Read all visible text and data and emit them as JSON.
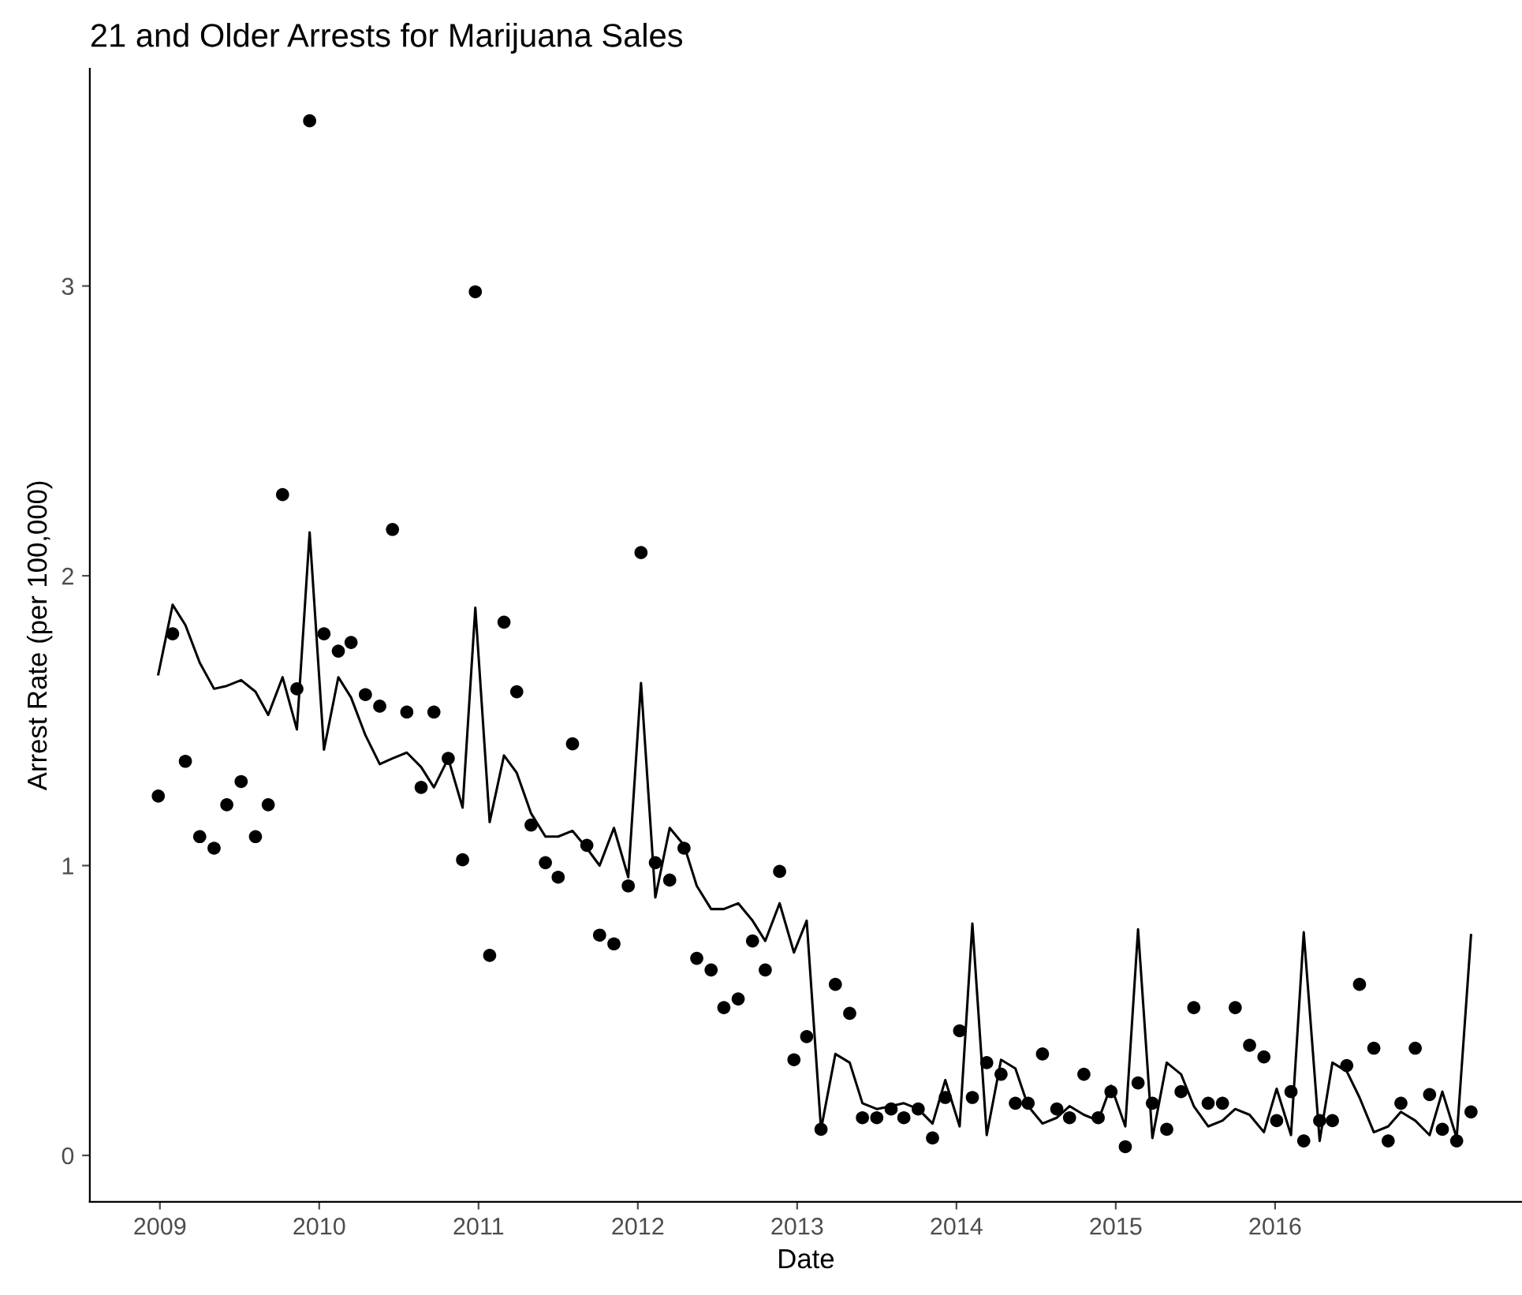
{
  "chart_data": {
    "type": "scatter",
    "title": "21 and Older Arrests for Marijuana Sales",
    "xlabel": "Date",
    "ylabel": "Arrest Rate (per 100,000)",
    "x": [
      2008.99,
      2009.08,
      2009.16,
      2009.25,
      2009.34,
      2009.42,
      2009.51,
      2009.6,
      2009.68,
      2009.77,
      2009.86,
      2009.94,
      2010.03,
      2010.12,
      2010.2,
      2010.29,
      2010.38,
      2010.46,
      2010.55,
      2010.64,
      2010.72,
      2010.81,
      2010.9,
      2010.98,
      2011.07,
      2011.16,
      2011.24,
      2011.33,
      2011.42,
      2011.5,
      2011.59,
      2011.68,
      2011.76,
      2011.85,
      2011.94,
      2012.02,
      2012.11,
      2012.2,
      2012.29,
      2012.37,
      2012.46,
      2012.54,
      2012.63,
      2012.72,
      2012.8,
      2012.89,
      2012.98,
      2013.06,
      2013.15,
      2013.24,
      2013.33,
      2013.41,
      2013.5,
      2013.59,
      2013.67,
      2013.76,
      2013.85,
      2013.93,
      2014.02,
      2014.1,
      2014.19,
      2014.28,
      2014.37,
      2014.45,
      2014.54,
      2014.63,
      2014.71,
      2014.8,
      2014.89,
      2014.97,
      2015.06,
      2015.14,
      2015.23,
      2015.32,
      2015.41,
      2015.49,
      2015.58,
      2015.67,
      2015.75,
      2015.84,
      2015.93,
      2016.01,
      2016.1,
      2016.18,
      2016.28,
      2016.36,
      2016.45,
      2016.53,
      2016.62,
      2016.71,
      2016.79,
      2016.88,
      2016.97,
      2017.05,
      2017.14,
      2017.23
    ],
    "series": [
      {
        "color": "#000000",
        "marker": "circle",
        "values": [
          1.24,
          1.8,
          1.36,
          1.1,
          1.06,
          1.21,
          1.29,
          1.1,
          1.21,
          2.28,
          1.61,
          3.57,
          1.8,
          1.74,
          1.77,
          1.59,
          1.55,
          2.16,
          1.53,
          1.27,
          1.53,
          1.37,
          1.02,
          2.98,
          0.69,
          1.84,
          1.6,
          1.14,
          1.01,
          0.96,
          1.42,
          1.07,
          0.76,
          0.73,
          0.93,
          2.08,
          1.01,
          0.95,
          1.06,
          0.68,
          0.64,
          0.51,
          0.54,
          0.74,
          0.64,
          0.98,
          0.33,
          0.41,
          0.09,
          0.59,
          0.49,
          0.13,
          0.13,
          0.16,
          0.13,
          0.16,
          0.06,
          0.2,
          0.43,
          0.2,
          0.32,
          0.28,
          0.18,
          0.18,
          0.35,
          0.16,
          0.13,
          0.28,
          0.13,
          0.22,
          0.03,
          0.25,
          0.18,
          0.09,
          0.22,
          0.51,
          0.18,
          0.18,
          0.51,
          0.38,
          0.34,
          0.12,
          0.22,
          0.05,
          0.12,
          0.12,
          0.31,
          0.59,
          0.37,
          0.05,
          0.18,
          0.37,
          0.21,
          0.09,
          0.05,
          0.15
        ]
      },
      {
        "type": "line",
        "color": "#000000",
        "marker": "none",
        "line_style": "solid",
        "values": [
          1.66,
          1.9,
          1.83,
          1.7,
          1.61,
          1.62,
          1.64,
          1.6,
          1.52,
          1.65,
          1.47,
          2.15,
          1.4,
          1.65,
          1.58,
          1.45,
          1.35,
          1.37,
          1.39,
          1.34,
          1.27,
          1.37,
          1.2,
          1.89,
          1.15,
          1.38,
          1.32,
          1.18,
          1.1,
          1.1,
          1.12,
          1.06,
          1.0,
          1.13,
          0.96,
          1.63,
          0.89,
          1.13,
          1.07,
          0.93,
          0.85,
          0.85,
          0.87,
          0.81,
          0.74,
          0.87,
          0.7,
          0.81,
          0.09,
          0.35,
          0.32,
          0.18,
          0.16,
          0.17,
          0.18,
          0.16,
          0.11,
          0.26,
          0.1,
          0.8,
          0.07,
          0.33,
          0.3,
          0.17,
          0.11,
          0.13,
          0.17,
          0.14,
          0.12,
          0.24,
          0.1,
          0.78,
          0.06,
          0.32,
          0.28,
          0.17,
          0.1,
          0.12,
          0.16,
          0.14,
          0.08,
          0.23,
          0.07,
          0.77,
          0.05,
          0.32,
          0.29,
          0.2,
          0.08,
          0.1,
          0.15,
          0.12,
          0.07,
          0.22,
          0.06,
          0.76
        ]
      }
    ],
    "xlim": [
      2008.56,
      2017.55
    ],
    "xticks": [
      2009,
      2010,
      2011,
      2012,
      2013,
      2014,
      2015,
      2016
    ],
    "ylim": [
      -0.16,
      3.75
    ],
    "yticks": [
      0,
      1,
      2,
      3
    ],
    "grid": false,
    "legend": false
  }
}
